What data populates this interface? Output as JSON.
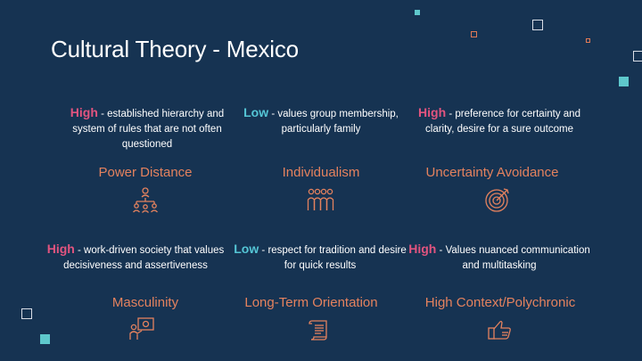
{
  "slide": {
    "title": "Cultural Theory - Mexico"
  },
  "dimensions": [
    {
      "level": "High",
      "level_color": "#e2547f",
      "description": " - established hierarchy and system of rules that are not often questioned",
      "name": "Power Distance",
      "icon": "hierarchy-icon"
    },
    {
      "level": "Low",
      "level_color": "#55c6d6",
      "description": " - values group membership, particularly family",
      "name": "Individualism",
      "icon": "group-icon"
    },
    {
      "level": "High",
      "level_color": "#e2547f",
      "description": " - preference for certainty and clarity, desire for a sure outcome",
      "name": "Uncertainty Avoidance",
      "icon": "target-icon"
    },
    {
      "level": "High",
      "level_color": "#e2547f",
      "description": " - work-driven society that values decisiveness and assertiveness",
      "name": "Masculinity",
      "icon": "presentation-icon"
    },
    {
      "level": "Low",
      "level_color": "#55c6d6",
      "description": " - respect for tradition and desire for quick results",
      "name": "Long-Term Orientation",
      "icon": "scroll-icon"
    },
    {
      "level": "High",
      "level_color": "#e2547f",
      "description": " - Values nuanced communication and multitasking",
      "name": "High Context/Polychronic",
      "icon": "thumbs-up-icon"
    }
  ]
}
